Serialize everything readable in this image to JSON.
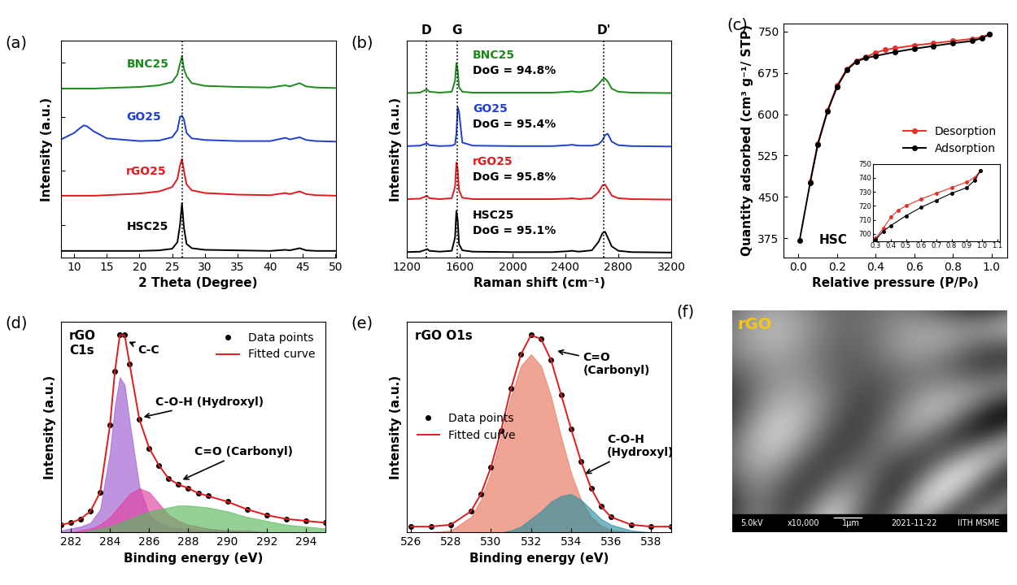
{
  "chart_data": [
    {
      "type": "line",
      "panel_label": "(a)",
      "xlabel": "2 Theta (Degree)",
      "ylabel": "Intensity (a.u.)",
      "xlim": [
        8,
        50
      ],
      "xticks": [
        10,
        15,
        20,
        25,
        30,
        35,
        40,
        45,
        50
      ],
      "ylim": [
        0,
        4.0
      ],
      "yticks": [
        0.6,
        1.6,
        2.6,
        3.6
      ],
      "tick_labels": "x",
      "vlines": [
        26.5
      ],
      "x": [
        8,
        10,
        11,
        11.5,
        12,
        13,
        15,
        20,
        23,
        25,
        25.8,
        26.2,
        26.5,
        26.8,
        27.2,
        28,
        30,
        35,
        40,
        42.3,
        43,
        44.5,
        45.5,
        47,
        50
      ],
      "series": [
        {
          "name": "BNC25",
          "color": "#1b8a1b",
          "values": [
            3.12,
            3.12,
            3.12,
            3.12,
            3.12,
            3.12,
            3.13,
            3.15,
            3.18,
            3.24,
            3.38,
            3.58,
            3.72,
            3.48,
            3.35,
            3.22,
            3.17,
            3.15,
            3.14,
            3.18,
            3.16,
            3.22,
            3.16,
            3.14,
            3.13
          ]
        },
        {
          "name": "GO25",
          "color": "#1f3fd1",
          "values": [
            2.18,
            2.3,
            2.4,
            2.44,
            2.42,
            2.33,
            2.2,
            2.15,
            2.16,
            2.22,
            2.35,
            2.6,
            2.62,
            2.55,
            2.3,
            2.2,
            2.17,
            2.15,
            2.15,
            2.21,
            2.18,
            2.22,
            2.17,
            2.15,
            2.14
          ]
        },
        {
          "name": "rGO25",
          "color": "#e31a1c",
          "values": [
            1.14,
            1.14,
            1.14,
            1.14,
            1.14,
            1.14,
            1.15,
            1.18,
            1.22,
            1.3,
            1.45,
            1.7,
            1.82,
            1.6,
            1.35,
            1.24,
            1.19,
            1.16,
            1.15,
            1.19,
            1.17,
            1.22,
            1.17,
            1.15,
            1.14
          ]
        },
        {
          "name": "HSC25",
          "color": "#000000",
          "values": [
            0.12,
            0.12,
            0.12,
            0.12,
            0.12,
            0.12,
            0.12,
            0.12,
            0.13,
            0.16,
            0.28,
            0.6,
            1.0,
            0.55,
            0.25,
            0.17,
            0.14,
            0.13,
            0.12,
            0.14,
            0.13,
            0.17,
            0.13,
            0.12,
            0.12
          ]
        }
      ]
    },
    {
      "type": "line",
      "panel_label": "(b)",
      "xlabel": "Raman shift (cm⁻¹)",
      "ylabel": "Intensity (a.u.)",
      "xlim": [
        1200,
        3200
      ],
      "xticks": [
        1200,
        1600,
        2000,
        2400,
        2800,
        3200
      ],
      "ylim": [
        0,
        4.9
      ],
      "tick_labels": "x",
      "peak_lines": [
        {
          "label": "D",
          "x": 1350
        },
        {
          "label": "G",
          "x": 1580
        },
        {
          "label": "D'",
          "x": 2690
        }
      ],
      "x": [
        1200,
        1300,
        1340,
        1355,
        1370,
        1450,
        1540,
        1565,
        1575,
        1585,
        1595,
        1620,
        1700,
        2000,
        2300,
        2420,
        2450,
        2500,
        2600,
        2650,
        2680,
        2700,
        2720,
        2750,
        2800,
        2900,
        3200
      ],
      "series": [
        {
          "name": "BNC25",
          "color": "#1b8a1b",
          "annotation": "DoG = 94.8%",
          "values": [
            3.72,
            3.73,
            3.79,
            3.8,
            3.75,
            3.73,
            3.75,
            4.0,
            4.4,
            4.25,
            3.85,
            3.75,
            3.73,
            3.73,
            3.73,
            3.75,
            3.76,
            3.74,
            3.78,
            3.92,
            4.03,
            4.05,
            3.98,
            3.82,
            3.75,
            3.73,
            3.72
          ]
        },
        {
          "name": "GO25",
          "color": "#1f3fd1",
          "annotation": "DoG = 95.4%",
          "values": [
            2.52,
            2.53,
            2.57,
            2.58,
            2.54,
            2.52,
            2.53,
            2.56,
            2.8,
            3.4,
            3.3,
            2.6,
            2.53,
            2.52,
            2.52,
            2.54,
            2.55,
            2.53,
            2.53,
            2.56,
            2.65,
            2.77,
            2.8,
            2.62,
            2.54,
            2.52,
            2.51
          ]
        },
        {
          "name": "rGO25",
          "color": "#e31a1c",
          "annotation": "DoG = 95.8%",
          "values": [
            1.32,
            1.33,
            1.38,
            1.39,
            1.34,
            1.32,
            1.34,
            1.6,
            2.15,
            2.0,
            1.52,
            1.35,
            1.32,
            1.32,
            1.32,
            1.33,
            1.34,
            1.32,
            1.34,
            1.48,
            1.63,
            1.65,
            1.55,
            1.4,
            1.34,
            1.32,
            1.31
          ]
        },
        {
          "name": "HSC25",
          "color": "#000000",
          "annotation": "DoG = 95.1%",
          "values": [
            0.12,
            0.13,
            0.17,
            0.19,
            0.15,
            0.13,
            0.15,
            0.45,
            1.05,
            0.85,
            0.3,
            0.16,
            0.13,
            0.12,
            0.12,
            0.14,
            0.15,
            0.13,
            0.16,
            0.35,
            0.55,
            0.58,
            0.45,
            0.25,
            0.15,
            0.12,
            0.11
          ]
        }
      ]
    },
    {
      "type": "line",
      "panel_label": "(c)",
      "xlabel": "Relative pressure (P/P₀)",
      "ylabel": "Quantity adsorbed (cm³ g⁻¹/ STP)",
      "xlim": [
        -0.08,
        1.08
      ],
      "xticks": [
        0.0,
        0.2,
        0.4,
        0.6,
        0.8,
        1.0
      ],
      "ylim": [
        340,
        765
      ],
      "yticks": [
        375,
        450,
        525,
        600,
        675,
        750
      ],
      "legend": "center right",
      "text": "HSC",
      "inset": {
        "xlim": [
          0.28,
          1.12
        ],
        "xticks": [
          0.3,
          0.4,
          0.5,
          0.6,
          0.7,
          0.8,
          0.9,
          1.0,
          1.1
        ],
        "ylim": [
          695,
          750
        ],
        "yticks": [
          700,
          710,
          720,
          730,
          740,
          750
        ]
      },
      "series": [
        {
          "name": "Desorption",
          "color": "#e8302a",
          "marker": "o",
          "line_style": "solid",
          "x": [
            0.99,
            0.95,
            0.9,
            0.8,
            0.7,
            0.6,
            0.5,
            0.45,
            0.4,
            0.35,
            0.3,
            0.25,
            0.2,
            0.15,
            0.1,
            0.06
          ],
          "values": [
            745,
            740,
            737,
            733,
            729,
            725,
            720,
            717,
            712,
            704,
            697,
            682,
            652,
            607,
            547,
            477
          ]
        },
        {
          "name": "Adsorption",
          "color": "#000000",
          "marker": "o",
          "line_style": "solid",
          "x": [
            0.005,
            0.06,
            0.1,
            0.15,
            0.2,
            0.25,
            0.3,
            0.35,
            0.4,
            0.5,
            0.6,
            0.7,
            0.8,
            0.9,
            0.95,
            0.99
          ],
          "values": [
            370,
            475,
            545,
            605,
            650,
            680,
            696,
            702,
            706,
            713,
            719,
            724,
            729,
            733,
            738,
            745
          ]
        }
      ]
    },
    {
      "type": "line",
      "panel_label": "(d)",
      "xlabel": "Binding energy (eV)",
      "ylabel": "Intensity (a.u.)",
      "xlim": [
        281.5,
        295
      ],
      "xticks": [
        282,
        284,
        286,
        288,
        290,
        292,
        294
      ],
      "ylim": [
        0,
        1.1
      ],
      "tick_labels": "x",
      "legend": "upper right",
      "text": "rGO\nC1s",
      "x": [
        281.5,
        282,
        282.5,
        283,
        283.5,
        284,
        284.25,
        284.5,
        284.75,
        285,
        285.5,
        286,
        286.5,
        287,
        287.5,
        288,
        288.5,
        289,
        290,
        291,
        292,
        293,
        294,
        295
      ],
      "series": [
        {
          "name": "C-C",
          "type": "area",
          "color": "#9b59d0",
          "values": [
            0.01,
            0.02,
            0.03,
            0.05,
            0.12,
            0.42,
            0.66,
            0.81,
            0.77,
            0.58,
            0.24,
            0.09,
            0.05,
            0.03,
            0.02,
            0.02,
            0.01,
            0.01,
            0.01,
            0.0,
            0.0,
            0.0,
            0.0,
            0.0
          ]
        },
        {
          "name": "C-O-H (Hydroxyl)",
          "type": "area",
          "color": "#e040a0",
          "values": [
            0.0,
            0.0,
            0.01,
            0.02,
            0.04,
            0.08,
            0.11,
            0.14,
            0.17,
            0.2,
            0.23,
            0.21,
            0.15,
            0.09,
            0.06,
            0.04,
            0.03,
            0.02,
            0.01,
            0.01,
            0.0,
            0.0,
            0.0,
            0.0
          ]
        },
        {
          "name": "C=O (Carbonyl)",
          "type": "area",
          "color": "#5cb85c",
          "values": [
            0.0,
            0.0,
            0.0,
            0.01,
            0.02,
            0.03,
            0.04,
            0.05,
            0.06,
            0.07,
            0.09,
            0.11,
            0.12,
            0.13,
            0.14,
            0.14,
            0.135,
            0.13,
            0.11,
            0.08,
            0.06,
            0.04,
            0.03,
            0.02
          ]
        },
        {
          "name": "Data points",
          "type": "scatter",
          "color": "#000000",
          "marker": "o",
          "values": [
            0.04,
            0.05,
            0.07,
            0.11,
            0.21,
            0.56,
            0.84,
            1.03,
            1.03,
            0.88,
            0.59,
            0.44,
            0.35,
            0.28,
            0.25,
            0.23,
            0.205,
            0.19,
            0.16,
            0.12,
            0.09,
            0.07,
            0.06,
            0.05
          ]
        },
        {
          "name": "Fitted curve",
          "type": "line",
          "color": "#e31a1c",
          "line_style": "solid",
          "values": [
            0.04,
            0.05,
            0.07,
            0.11,
            0.21,
            0.56,
            0.84,
            1.03,
            1.03,
            0.88,
            0.59,
            0.44,
            0.35,
            0.28,
            0.25,
            0.23,
            0.205,
            0.19,
            0.16,
            0.12,
            0.09,
            0.07,
            0.06,
            0.05
          ]
        }
      ]
    },
    {
      "type": "line",
      "panel_label": "(e)",
      "xlabel": "Binding energy (eV)",
      "ylabel": "Intensity (a.u.)",
      "xlim": [
        525.8,
        539
      ],
      "xticks": [
        526,
        528,
        530,
        532,
        534,
        536,
        538
      ],
      "ylim": [
        0,
        1.1
      ],
      "tick_labels": "x",
      "legend": "center left",
      "text": "rGO O1s",
      "x": [
        526,
        527,
        528,
        529,
        529.5,
        530,
        530.5,
        531,
        531.5,
        532,
        532.5,
        533,
        533.5,
        534,
        534.5,
        535,
        535.5,
        536,
        537,
        538,
        539
      ],
      "series": [
        {
          "name": "C=O\n(Carbonyl)",
          "type": "area",
          "color": "#e8735a",
          "values": [
            0.0,
            0.0,
            0.01,
            0.08,
            0.17,
            0.31,
            0.5,
            0.71,
            0.87,
            0.93,
            0.87,
            0.71,
            0.5,
            0.31,
            0.17,
            0.08,
            0.035,
            0.01,
            0.0,
            0.0,
            0.0
          ]
        },
        {
          "name": "C-O-H\n(Hydroxyl)",
          "type": "area",
          "color": "#2a8fa0",
          "values": [
            0.0,
            0.0,
            0.0,
            0.0,
            0.0,
            0.0,
            0.0,
            0.01,
            0.03,
            0.07,
            0.11,
            0.16,
            0.19,
            0.2,
            0.17,
            0.12,
            0.07,
            0.04,
            0.01,
            0.0,
            0.0
          ]
        },
        {
          "name": "Data points",
          "type": "scatter",
          "color": "#000000",
          "marker": "o",
          "values": [
            0.03,
            0.03,
            0.04,
            0.11,
            0.2,
            0.34,
            0.53,
            0.75,
            0.93,
            1.03,
            1.01,
            0.9,
            0.72,
            0.54,
            0.37,
            0.23,
            0.135,
            0.08,
            0.04,
            0.03,
            0.03
          ]
        },
        {
          "name": "Fitted curve",
          "type": "line",
          "color": "#e31a1c",
          "line_style": "solid",
          "values": [
            0.03,
            0.03,
            0.04,
            0.11,
            0.2,
            0.34,
            0.53,
            0.75,
            0.93,
            1.03,
            1.01,
            0.9,
            0.72,
            0.54,
            0.37,
            0.23,
            0.135,
            0.08,
            0.04,
            0.03,
            0.03
          ]
        }
      ]
    },
    {
      "type": "image",
      "panel_label": "(f)",
      "label": "rGO",
      "info_bar": [
        "5.0kV",
        "x10,000",
        "1μm",
        "2021-11-22",
        "IITH MSME"
      ]
    }
  ]
}
